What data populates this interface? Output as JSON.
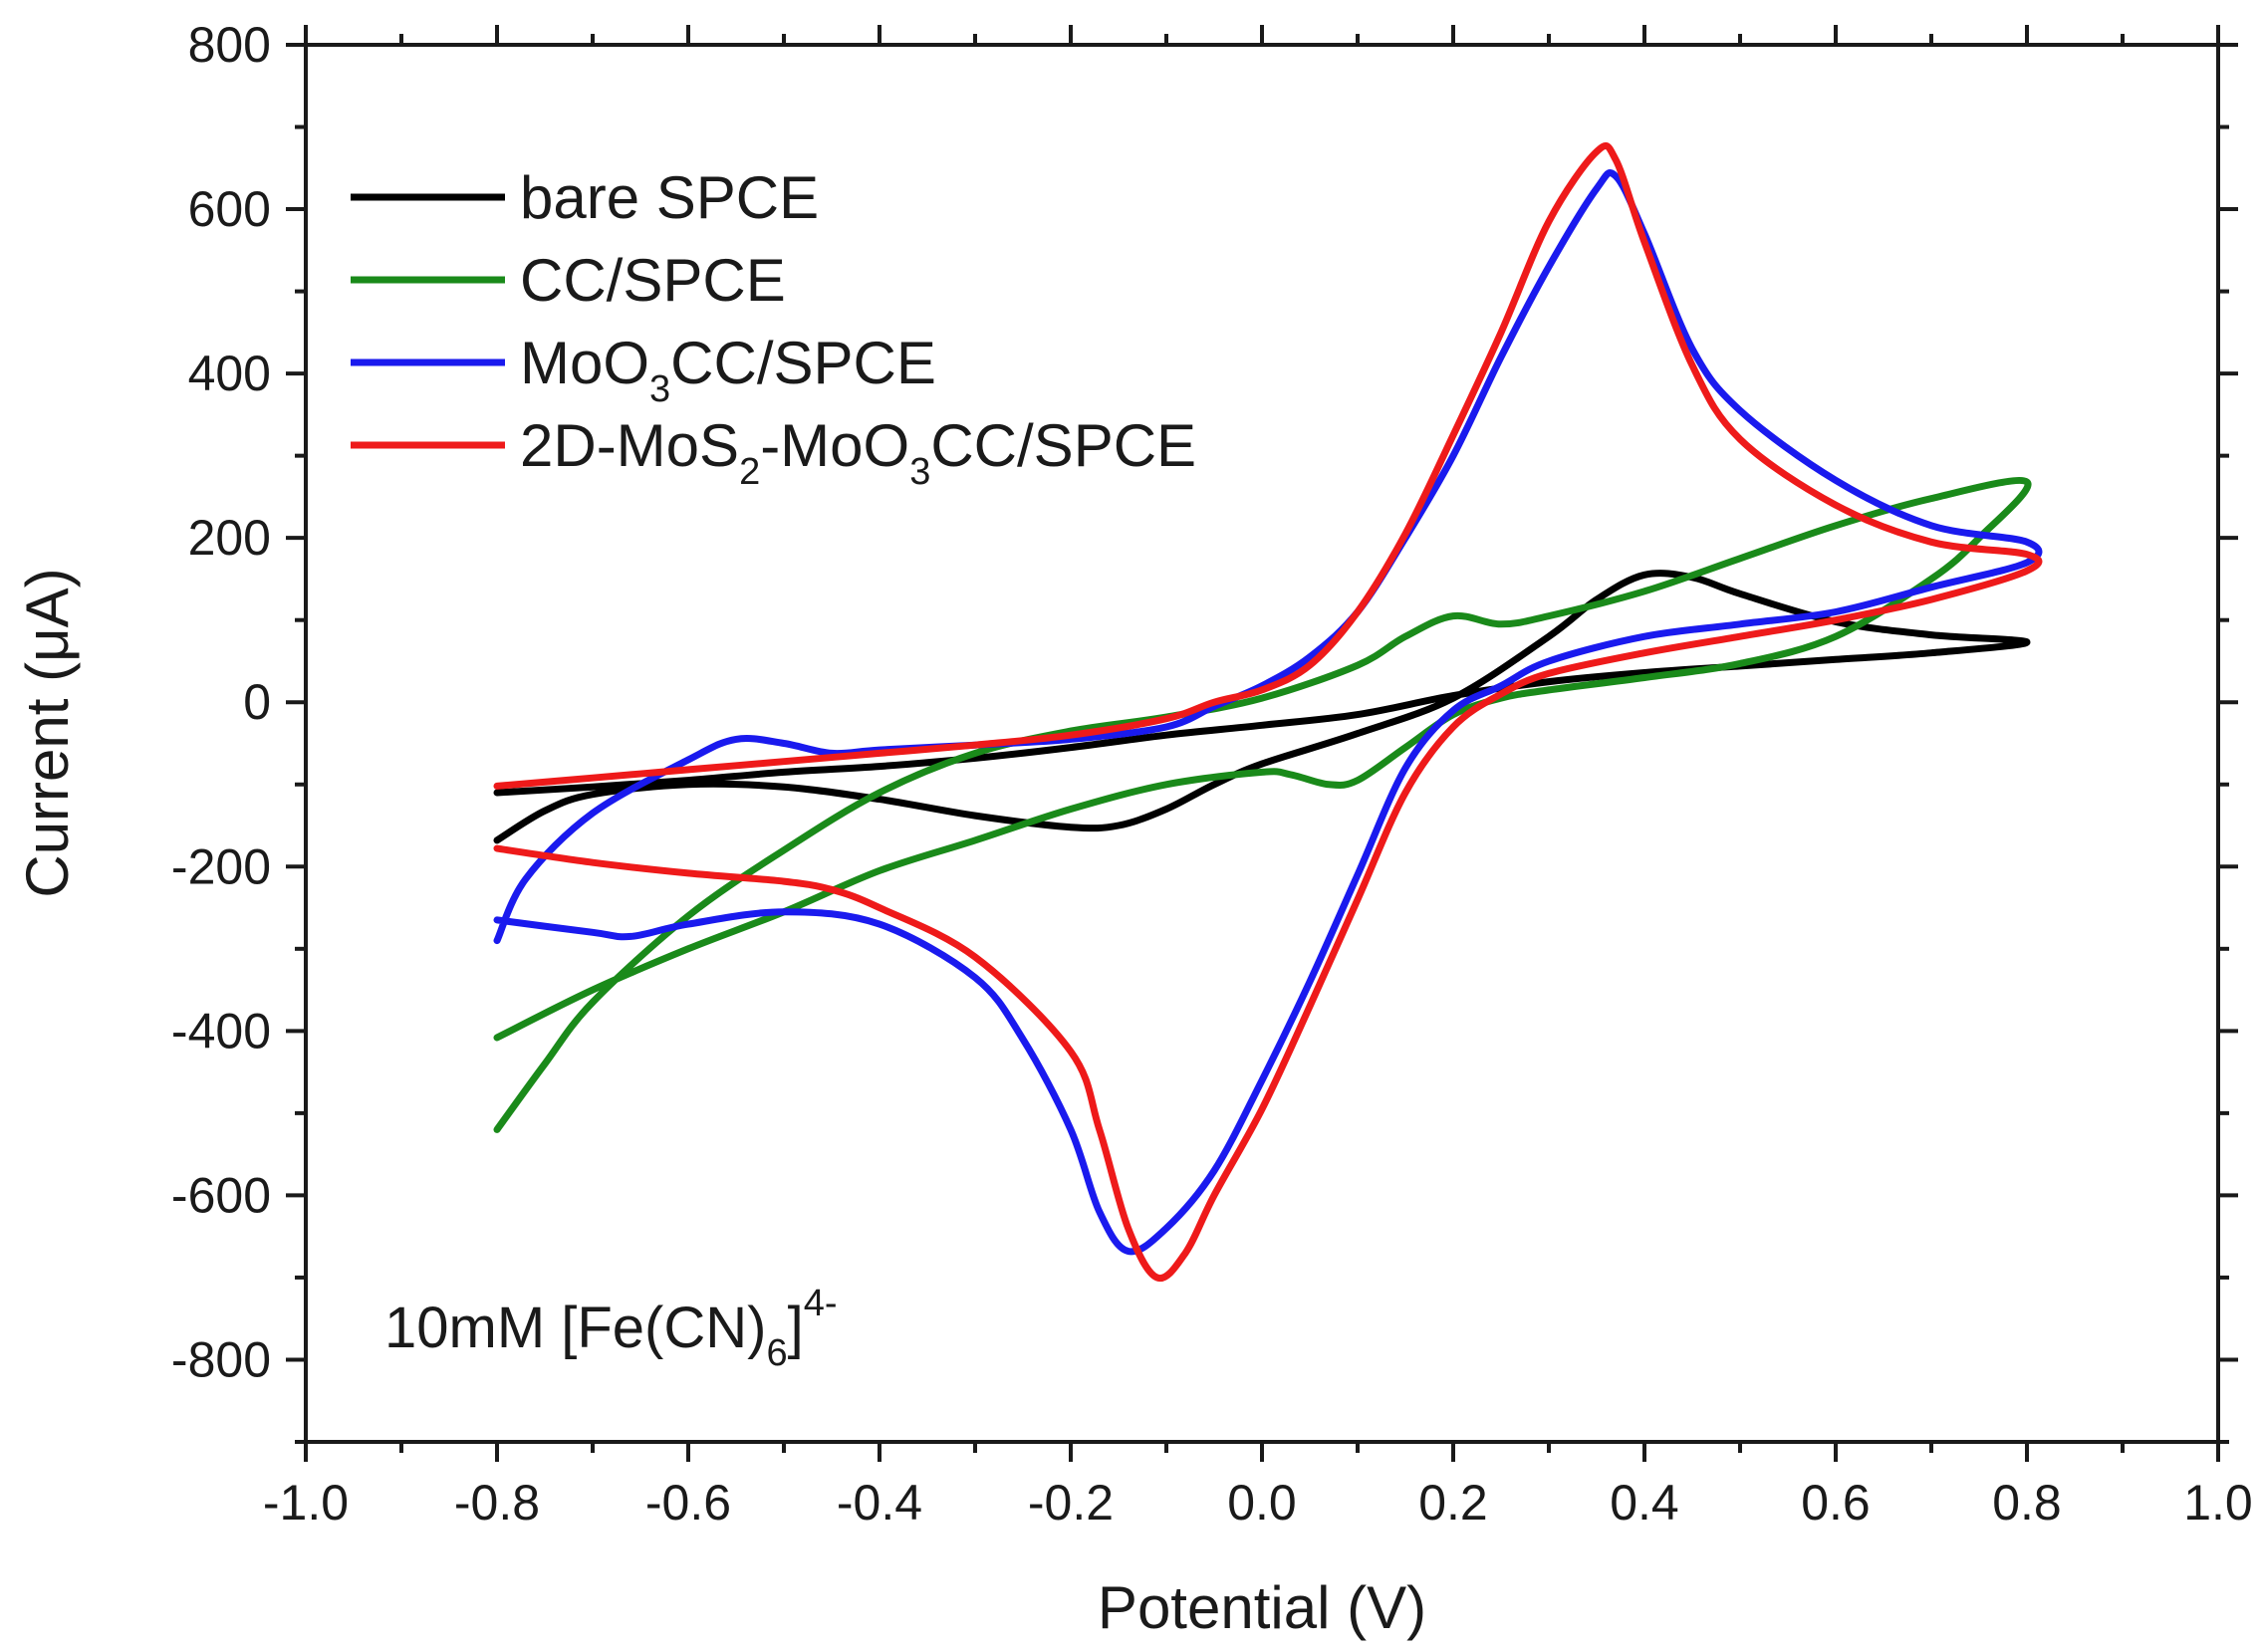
{
  "chart_data": {
    "type": "line",
    "title": "",
    "xlabel": "Potential (V)",
    "ylabel": "Current (μA)",
    "xlim": [
      -1.0,
      1.0
    ],
    "ylim": [
      -900,
      800
    ],
    "x_ticks": [
      -1.0,
      -0.8,
      -0.6,
      -0.4,
      -0.2,
      0.0,
      0.2,
      0.4,
      0.6,
      0.8,
      1.0
    ],
    "x_tick_labels": [
      "-1.0",
      "-0.8",
      "-0.6",
      "-0.4",
      "-0.2",
      "0.0",
      "0.2",
      "0.4",
      "0.6",
      "0.8",
      "1.0"
    ],
    "y_ticks": [
      -800,
      -600,
      -400,
      -200,
      0,
      200,
      400,
      600,
      800
    ],
    "y_tick_labels": [
      "-800",
      "-600",
      "-400",
      "-200",
      "0",
      "200",
      "400",
      "600",
      "800"
    ],
    "legend_position": "top-left",
    "legend": [
      {
        "parts": [
          [
            "bare SPCE",
            ""
          ]
        ]
      },
      {
        "parts": [
          [
            "CC/SPCE",
            ""
          ]
        ]
      },
      {
        "parts": [
          [
            "MoO",
            ""
          ],
          [
            "3",
            "sub"
          ],
          [
            "CC/SPCE",
            ""
          ]
        ]
      },
      {
        "parts": [
          [
            "2D-MoS",
            ""
          ],
          [
            "2",
            "sub"
          ],
          [
            "-MoO",
            ""
          ],
          [
            "3",
            "sub"
          ],
          [
            "CC/SPCE",
            ""
          ]
        ]
      }
    ],
    "annotation": {
      "parts": [
        [
          "10mM [Fe(CN)",
          ""
        ],
        [
          "6",
          "sub"
        ],
        [
          "]",
          ""
        ],
        [
          "4-",
          "sup"
        ]
      ],
      "position": "bottom-left"
    },
    "series": [
      {
        "name": "bare SPCE",
        "color": "#000000",
        "points": [
          [
            -0.8,
            -168
          ],
          [
            -0.75,
            -132
          ],
          [
            -0.7,
            -112
          ],
          [
            -0.6,
            -100
          ],
          [
            -0.5,
            -103
          ],
          [
            -0.4,
            -118
          ],
          [
            -0.3,
            -138
          ],
          [
            -0.2,
            -152
          ],
          [
            -0.15,
            -150
          ],
          [
            -0.1,
            -130
          ],
          [
            -0.05,
            -100
          ],
          [
            0.0,
            -75
          ],
          [
            0.1,
            -38
          ],
          [
            0.2,
            5
          ],
          [
            0.3,
            80
          ],
          [
            0.35,
            125
          ],
          [
            0.4,
            155
          ],
          [
            0.45,
            152
          ],
          [
            0.5,
            132
          ],
          [
            0.6,
            98
          ],
          [
            0.7,
            82
          ],
          [
            0.8,
            73
          ],
          [
            0.7,
            60
          ],
          [
            0.6,
            52
          ],
          [
            0.5,
            44
          ],
          [
            0.4,
            36
          ],
          [
            0.3,
            25
          ],
          [
            0.2,
            8
          ],
          [
            0.1,
            -15
          ],
          [
            0.0,
            -28
          ],
          [
            -0.1,
            -40
          ],
          [
            -0.2,
            -55
          ],
          [
            -0.3,
            -68
          ],
          [
            -0.4,
            -78
          ],
          [
            -0.5,
            -85
          ],
          [
            -0.6,
            -95
          ],
          [
            -0.7,
            -103
          ],
          [
            -0.8,
            -110
          ]
        ]
      },
      {
        "name": "CC/SPCE",
        "color": "#1a8a1a",
        "points": [
          [
            -0.8,
            -520
          ],
          [
            -0.75,
            -440
          ],
          [
            -0.7,
            -365
          ],
          [
            -0.6,
            -260
          ],
          [
            -0.5,
            -180
          ],
          [
            -0.4,
            -110
          ],
          [
            -0.3,
            -62
          ],
          [
            -0.2,
            -35
          ],
          [
            -0.1,
            -18
          ],
          [
            0.0,
            5
          ],
          [
            0.1,
            45
          ],
          [
            0.15,
            80
          ],
          [
            0.2,
            105
          ],
          [
            0.25,
            95
          ],
          [
            0.3,
            105
          ],
          [
            0.4,
            135
          ],
          [
            0.5,
            175
          ],
          [
            0.6,
            215
          ],
          [
            0.7,
            248
          ],
          [
            0.8,
            268
          ],
          [
            0.75,
            200
          ],
          [
            0.7,
            150
          ],
          [
            0.6,
            80
          ],
          [
            0.5,
            47
          ],
          [
            0.4,
            30
          ],
          [
            0.3,
            15
          ],
          [
            0.25,
            5
          ],
          [
            0.2,
            -15
          ],
          [
            0.15,
            -55
          ],
          [
            0.1,
            -95
          ],
          [
            0.07,
            -100
          ],
          [
            0.03,
            -88
          ],
          [
            0.0,
            -85
          ],
          [
            -0.1,
            -100
          ],
          [
            -0.2,
            -130
          ],
          [
            -0.3,
            -168
          ],
          [
            -0.4,
            -205
          ],
          [
            -0.5,
            -255
          ],
          [
            -0.6,
            -300
          ],
          [
            -0.7,
            -350
          ],
          [
            -0.8,
            -408
          ]
        ]
      },
      {
        "name": "MoO3CC/SPCE",
        "color": "#1a1aee",
        "points": [
          [
            -0.8,
            -290
          ],
          [
            -0.77,
            -215
          ],
          [
            -0.7,
            -135
          ],
          [
            -0.6,
            -70
          ],
          [
            -0.55,
            -45
          ],
          [
            -0.5,
            -50
          ],
          [
            -0.45,
            -62
          ],
          [
            -0.4,
            -58
          ],
          [
            -0.3,
            -52
          ],
          [
            -0.2,
            -45
          ],
          [
            -0.1,
            -30
          ],
          [
            -0.05,
            -5
          ],
          [
            0.0,
            20
          ],
          [
            0.05,
            55
          ],
          [
            0.1,
            110
          ],
          [
            0.15,
            200
          ],
          [
            0.2,
            300
          ],
          [
            0.25,
            420
          ],
          [
            0.3,
            530
          ],
          [
            0.35,
            625
          ],
          [
            0.37,
            640
          ],
          [
            0.4,
            570
          ],
          [
            0.45,
            430
          ],
          [
            0.5,
            355
          ],
          [
            0.6,
            270
          ],
          [
            0.7,
            215
          ],
          [
            0.8,
            195
          ],
          [
            0.8,
            170
          ],
          [
            0.7,
            140
          ],
          [
            0.6,
            110
          ],
          [
            0.5,
            95
          ],
          [
            0.4,
            80
          ],
          [
            0.3,
            50
          ],
          [
            0.25,
            20
          ],
          [
            0.2,
            -10
          ],
          [
            0.15,
            -80
          ],
          [
            0.1,
            -210
          ],
          [
            0.05,
            -340
          ],
          [
            0.0,
            -460
          ],
          [
            -0.05,
            -570
          ],
          [
            -0.1,
            -640
          ],
          [
            -0.14,
            -668
          ],
          [
            -0.17,
            -620
          ],
          [
            -0.2,
            -520
          ],
          [
            -0.25,
            -410
          ],
          [
            -0.3,
            -335
          ],
          [
            -0.4,
            -270
          ],
          [
            -0.5,
            -255
          ],
          [
            -0.6,
            -270
          ],
          [
            -0.66,
            -285
          ],
          [
            -0.7,
            -280
          ],
          [
            -0.8,
            -265
          ]
        ]
      },
      {
        "name": "2D-MoS2-MoO3CC/SPCE",
        "color": "#ee1a1a",
        "points": [
          [
            -0.8,
            -178
          ],
          [
            -0.7,
            -195
          ],
          [
            -0.6,
            -208
          ],
          [
            -0.5,
            -218
          ],
          [
            -0.45,
            -228
          ],
          [
            -0.4,
            -250
          ],
          [
            -0.3,
            -310
          ],
          [
            -0.2,
            -425
          ],
          [
            -0.17,
            -520
          ],
          [
            -0.14,
            -640
          ],
          [
            -0.11,
            -700
          ],
          [
            -0.08,
            -670
          ],
          [
            -0.05,
            -600
          ],
          [
            0.0,
            -495
          ],
          [
            0.05,
            -370
          ],
          [
            0.1,
            -240
          ],
          [
            0.15,
            -110
          ],
          [
            0.2,
            -30
          ],
          [
            0.25,
            10
          ],
          [
            0.3,
            35
          ],
          [
            0.4,
            60
          ],
          [
            0.5,
            80
          ],
          [
            0.6,
            100
          ],
          [
            0.7,
            125
          ],
          [
            0.8,
            160
          ],
          [
            0.8,
            180
          ],
          [
            0.7,
            195
          ],
          [
            0.6,
            240
          ],
          [
            0.5,
            320
          ],
          [
            0.45,
            410
          ],
          [
            0.4,
            560
          ],
          [
            0.37,
            660
          ],
          [
            0.35,
            670
          ],
          [
            0.3,
            585
          ],
          [
            0.25,
            450
          ],
          [
            0.2,
            325
          ],
          [
            0.15,
            205
          ],
          [
            0.1,
            110
          ],
          [
            0.05,
            45
          ],
          [
            0.0,
            15
          ],
          [
            -0.05,
            0
          ],
          [
            -0.1,
            -20
          ],
          [
            -0.2,
            -40
          ],
          [
            -0.3,
            -52
          ],
          [
            -0.4,
            -62
          ],
          [
            -0.5,
            -72
          ],
          [
            -0.6,
            -82
          ],
          [
            -0.7,
            -92
          ],
          [
            -0.8,
            -102
          ]
        ]
      }
    ]
  }
}
